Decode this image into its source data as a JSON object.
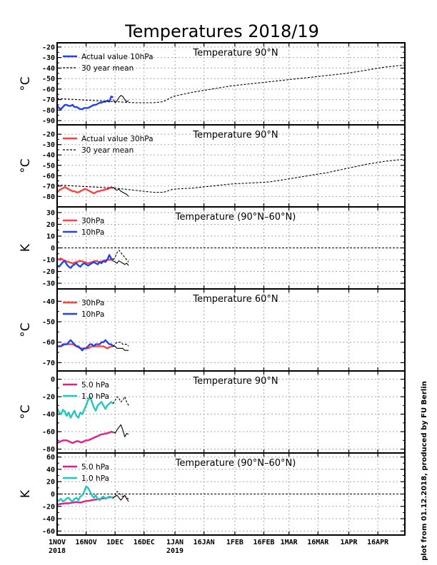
{
  "title": "Temperatures 2018/19",
  "credit": "plot from 01.12.2018, produced by FU Berlin",
  "x_axis": {
    "ticks": [
      {
        "day": 0,
        "label": "1NOV",
        "sub": "2018"
      },
      {
        "day": 15,
        "label": "16NOV",
        "sub": ""
      },
      {
        "day": 30,
        "label": "1DEC",
        "sub": ""
      },
      {
        "day": 45,
        "label": "16DEC",
        "sub": ""
      },
      {
        "day": 61,
        "label": "1JAN",
        "sub": "2019"
      },
      {
        "day": 76,
        "label": "16JAN",
        "sub": ""
      },
      {
        "day": 92,
        "label": "1FEB",
        "sub": ""
      },
      {
        "day": 107,
        "label": "16FEB",
        "sub": ""
      },
      {
        "day": 120,
        "label": "1MAR",
        "sub": ""
      },
      {
        "day": 135,
        "label": "16MAR",
        "sub": ""
      },
      {
        "day": 151,
        "label": "1APR",
        "sub": ""
      },
      {
        "day": 166,
        "label": "16APR",
        "sub": ""
      }
    ],
    "range": [
      0,
      180
    ]
  },
  "colors": {
    "red": "#ff4040",
    "blue": "#2244ee",
    "magenta": "#e0208a",
    "cyan": "#20c8c0",
    "black": "#000000",
    "grid": "#a8a8a8"
  },
  "chart_data": [
    {
      "type": "line",
      "title": "Temperature 90°N",
      "ylabel": "°C",
      "ylim": [
        -92,
        -18
      ],
      "yticks": [
        -90,
        -80,
        -70,
        -60,
        -50,
        -40,
        -30,
        -20
      ],
      "grid": true,
      "zero_line": false,
      "legend": "top-left",
      "series": [
        {
          "name": "Actual value 10hPa",
          "color": "blue",
          "style": "thick",
          "x": [
            0,
            1,
            2,
            3,
            4,
            5,
            6,
            7,
            8,
            9,
            10,
            11,
            12,
            13,
            14,
            15,
            16,
            17,
            18,
            19,
            20,
            21,
            22,
            23,
            24,
            25,
            26,
            27,
            28,
            29
          ],
          "y": [
            -76,
            -78,
            -79,
            -77,
            -75,
            -75,
            -76,
            -76,
            -75,
            -77,
            -77,
            -78,
            -79,
            -79,
            -78,
            -78,
            -78,
            -77,
            -76,
            -75,
            -75,
            -74,
            -73,
            -73,
            -72,
            -72,
            -71,
            -72,
            -67,
            -68
          ]
        },
        {
          "name": "30 year mean",
          "color": "black",
          "style": "dash",
          "x": [
            0,
            10,
            20,
            30,
            40,
            50,
            55,
            60,
            70,
            80,
            90,
            100,
            110,
            120,
            130,
            140,
            150,
            160,
            170,
            180
          ],
          "y": [
            -69,
            -70,
            -71,
            -72,
            -73,
            -73,
            -72,
            -67,
            -63,
            -60,
            -57,
            -55,
            -53,
            -51,
            -49,
            -47,
            -45,
            -42,
            -39,
            -37
          ]
        },
        {
          "name": "",
          "color": "black",
          "style": "solid",
          "x": [
            29,
            30,
            31,
            32,
            33,
            34,
            35,
            36,
            37
          ],
          "y": [
            -70,
            -73,
            -71,
            -68,
            -66,
            -67,
            -70,
            -72,
            -71
          ]
        }
      ]
    },
    {
      "type": "line",
      "title": "Temperature 90°N",
      "ylabel": "°C",
      "ylim": [
        -88,
        -13
      ],
      "yticks": [
        -80,
        -70,
        -60,
        -50,
        -40,
        -30,
        -20
      ],
      "grid": true,
      "zero_line": false,
      "legend": "top-left",
      "series": [
        {
          "name": "Actual value 30hPa",
          "color": "red",
          "style": "thick",
          "x": [
            0,
            1,
            2,
            3,
            4,
            5,
            6,
            7,
            8,
            9,
            10,
            11,
            12,
            13,
            14,
            15,
            16,
            17,
            18,
            19,
            20,
            21,
            22,
            23,
            24,
            25,
            26,
            27,
            28,
            29
          ],
          "y": [
            -76,
            -74,
            -73,
            -72,
            -71,
            -72,
            -73,
            -74,
            -75,
            -75,
            -76,
            -76,
            -75,
            -74,
            -73,
            -73,
            -74,
            -75,
            -76,
            -77,
            -76,
            -75,
            -75,
            -74,
            -74,
            -73,
            -73,
            -72,
            -71,
            -72
          ]
        },
        {
          "name": "30 year mean",
          "color": "black",
          "style": "dash",
          "x": [
            0,
            10,
            20,
            30,
            40,
            50,
            55,
            60,
            70,
            80,
            90,
            100,
            110,
            120,
            130,
            140,
            150,
            160,
            170,
            180
          ],
          "y": [
            -69,
            -70,
            -71,
            -72,
            -74,
            -76,
            -76,
            -73,
            -72,
            -70,
            -68,
            -67,
            -66,
            -63,
            -60,
            -57,
            -53,
            -49,
            -46,
            -44
          ]
        },
        {
          "name": "",
          "color": "black",
          "style": "solid",
          "x": [
            29,
            30,
            31,
            32,
            33,
            34,
            35,
            36,
            37
          ],
          "y": [
            -71,
            -73,
            -74,
            -73,
            -75,
            -76,
            -77,
            -78,
            -80
          ]
        }
      ]
    },
    {
      "type": "line",
      "title": "Temperature (90°N–60°N)",
      "ylabel": "K",
      "ylim": [
        -33,
        33
      ],
      "yticks": [
        -30,
        -20,
        -10,
        0,
        10,
        20,
        30
      ],
      "grid": true,
      "zero_line": true,
      "legend": "top-left",
      "series": [
        {
          "name": "30hPa",
          "color": "red",
          "style": "thick",
          "x": [
            0,
            2,
            4,
            6,
            8,
            10,
            12,
            14,
            16,
            18,
            20,
            22,
            24,
            26,
            28,
            29
          ],
          "y": [
            -10,
            -9,
            -11,
            -12,
            -13,
            -12,
            -11,
            -12,
            -13,
            -12,
            -11,
            -12,
            -11,
            -10,
            -10,
            -11
          ]
        },
        {
          "name": "10hPa",
          "color": "blue",
          "style": "thick",
          "x": [
            0,
            1,
            2,
            3,
            4,
            5,
            6,
            7,
            8,
            9,
            10,
            11,
            12,
            13,
            14,
            15,
            16,
            17,
            18,
            19,
            20,
            21,
            22,
            23,
            24,
            25,
            26,
            27,
            28,
            29
          ],
          "y": [
            -15,
            -16,
            -14,
            -12,
            -11,
            -14,
            -16,
            -17,
            -15,
            -14,
            -13,
            -15,
            -16,
            -14,
            -13,
            -14,
            -15,
            -14,
            -13,
            -12,
            -13,
            -14,
            -12,
            -13,
            -11,
            -12,
            -10,
            -6,
            -9,
            -10
          ]
        },
        {
          "name": "",
          "color": "black",
          "style": "dash",
          "x": [
            29,
            30,
            31,
            32,
            33,
            34,
            35,
            36,
            37
          ],
          "y": [
            -10,
            -8,
            -4,
            -2,
            -4,
            -6,
            -8,
            -10,
            -12
          ]
        },
        {
          "name": "",
          "color": "black",
          "style": "solid",
          "x": [
            29,
            30,
            31,
            32,
            33,
            34,
            35,
            36,
            37
          ],
          "y": [
            -11,
            -12,
            -13,
            -11,
            -12,
            -13,
            -14,
            -13,
            -15
          ]
        }
      ]
    },
    {
      "type": "line",
      "title": "Temperature 60°N",
      "ylabel": "°C",
      "ylim": [
        -73,
        -35
      ],
      "yticks": [
        -70,
        -60,
        -50,
        -40
      ],
      "grid": true,
      "zero_line": false,
      "legend": "top-left",
      "series": [
        {
          "name": "30hPa",
          "color": "red",
          "style": "thick",
          "x": [
            0,
            2,
            4,
            6,
            8,
            10,
            12,
            14,
            16,
            18,
            20,
            22,
            24,
            26,
            28,
            29
          ],
          "y": [
            -62,
            -62,
            -61,
            -61,
            -61,
            -62,
            -63,
            -63,
            -63,
            -62,
            -62,
            -62,
            -62,
            -63,
            -62,
            -62
          ]
        },
        {
          "name": "10hPa",
          "color": "blue",
          "style": "thick",
          "x": [
            0,
            1,
            2,
            3,
            4,
            5,
            6,
            7,
            8,
            9,
            10,
            11,
            12,
            13,
            14,
            15,
            16,
            17,
            18,
            19,
            20,
            21,
            22,
            23,
            24,
            25,
            26,
            27,
            28,
            29
          ],
          "y": [
            -62,
            -62,
            -62,
            -61,
            -61,
            -61,
            -60,
            -59,
            -60,
            -61,
            -62,
            -62,
            -63,
            -64,
            -63,
            -63,
            -62,
            -61,
            -61,
            -62,
            -61,
            -61,
            -61,
            -60,
            -60,
            -59,
            -60,
            -61,
            -61,
            -62
          ]
        },
        {
          "name": "",
          "color": "black",
          "style": "dash",
          "x": [
            29,
            30,
            31,
            32,
            33,
            34,
            35,
            36,
            37
          ],
          "y": [
            -62,
            -61,
            -60,
            -60,
            -60,
            -61,
            -61,
            -61,
            -62
          ]
        },
        {
          "name": "",
          "color": "black",
          "style": "solid",
          "x": [
            29,
            30,
            31,
            32,
            33,
            34,
            35,
            36,
            37
          ],
          "y": [
            -62,
            -62,
            -63,
            -63,
            -63,
            -63,
            -64,
            -64,
            -64
          ]
        }
      ]
    },
    {
      "type": "line",
      "title": "Temperature 90°N",
      "ylabel": "°C",
      "ylim": [
        -82,
        7
      ],
      "yticks": [
        -80,
        -60,
        -40,
        -20,
        0
      ],
      "grid": true,
      "zero_line": false,
      "legend": "top-left",
      "series": [
        {
          "name": "5.0 hPa",
          "color": "magenta",
          "style": "thick",
          "x": [
            0,
            1,
            2,
            3,
            4,
            5,
            6,
            7,
            8,
            9,
            10,
            11,
            12,
            13,
            14,
            15,
            16,
            17,
            18,
            19,
            20,
            21,
            22,
            23,
            24,
            25,
            26,
            27,
            28,
            29
          ],
          "y": [
            -73,
            -72,
            -71,
            -70,
            -70,
            -70,
            -71,
            -72,
            -73,
            -72,
            -71,
            -71,
            -72,
            -72,
            -71,
            -70,
            -70,
            -69,
            -68,
            -67,
            -66,
            -65,
            -64,
            -63,
            -63,
            -62,
            -62,
            -61,
            -60,
            -61
          ]
        },
        {
          "name": "1.0 hPa",
          "color": "cyan",
          "style": "thick",
          "x": [
            0,
            1,
            2,
            3,
            4,
            5,
            6,
            7,
            8,
            9,
            10,
            11,
            12,
            13,
            14,
            15,
            16,
            17,
            18,
            19,
            20,
            21,
            22,
            23,
            24,
            25,
            26,
            27,
            28,
            29
          ],
          "y": [
            -33,
            -38,
            -40,
            -35,
            -37,
            -42,
            -38,
            -44,
            -40,
            -36,
            -42,
            -44,
            -38,
            -40,
            -35,
            -30,
            -24,
            -20,
            -26,
            -32,
            -36,
            -30,
            -28,
            -26,
            -30,
            -34,
            -30,
            -28,
            -26,
            -28
          ]
        },
        {
          "name": "",
          "color": "black",
          "style": "dash",
          "x": [
            29,
            30,
            31,
            32,
            33,
            34,
            35,
            36,
            37
          ],
          "y": [
            -28,
            -24,
            -20,
            -22,
            -26,
            -24,
            -20,
            -26,
            -30
          ]
        },
        {
          "name": "",
          "color": "black",
          "style": "solid",
          "x": [
            29,
            30,
            31,
            32,
            33,
            34,
            35,
            36,
            37
          ],
          "y": [
            -60,
            -62,
            -58,
            -55,
            -52,
            -58,
            -66,
            -62,
            -63
          ]
        }
      ]
    },
    {
      "type": "line",
      "title": "Temperature (90°N–60°N)",
      "ylabel": "K",
      "ylim": [
        -63,
        63
      ],
      "yticks": [
        -60,
        -40,
        -20,
        0,
        20,
        40,
        60
      ],
      "grid": true,
      "zero_line": true,
      "legend": "top-left",
      "series": [
        {
          "name": "5.0 hPa",
          "color": "magenta",
          "style": "thick",
          "x": [
            0,
            2,
            4,
            6,
            8,
            10,
            12,
            14,
            16,
            18,
            20,
            22,
            24,
            26,
            28,
            29
          ],
          "y": [
            -17,
            -16,
            -15,
            -15,
            -14,
            -13,
            -14,
            -12,
            -11,
            -10,
            -9,
            -8,
            -7,
            -6,
            -5,
            -6
          ]
        },
        {
          "name": "1.0 hPa",
          "color": "cyan",
          "style": "thick",
          "x": [
            0,
            1,
            2,
            3,
            4,
            5,
            6,
            7,
            8,
            9,
            10,
            11,
            12,
            13,
            14,
            15,
            16,
            17,
            18,
            19,
            20,
            21,
            22,
            23,
            24,
            25,
            26,
            27,
            28,
            29
          ],
          "y": [
            -12,
            -10,
            -8,
            -12,
            -10,
            -7,
            -6,
            -10,
            -12,
            -8,
            -6,
            -10,
            -4,
            -2,
            4,
            12,
            10,
            4,
            -2,
            -6,
            -2,
            -8,
            -10,
            -6,
            -4,
            -8,
            -6,
            -4,
            -5,
            -7
          ]
        },
        {
          "name": "",
          "color": "black",
          "style": "dash",
          "x": [
            29,
            30,
            31,
            32,
            33,
            34,
            35,
            36,
            37
          ],
          "y": [
            -7,
            -2,
            4,
            2,
            -2,
            -4,
            -2,
            -6,
            -8
          ]
        },
        {
          "name": "",
          "color": "black",
          "style": "solid",
          "x": [
            29,
            30,
            31,
            32,
            33,
            34,
            35,
            36,
            37
          ],
          "y": [
            -6,
            -4,
            -2,
            -6,
            -10,
            -6,
            -2,
            -8,
            -12
          ]
        }
      ]
    }
  ]
}
